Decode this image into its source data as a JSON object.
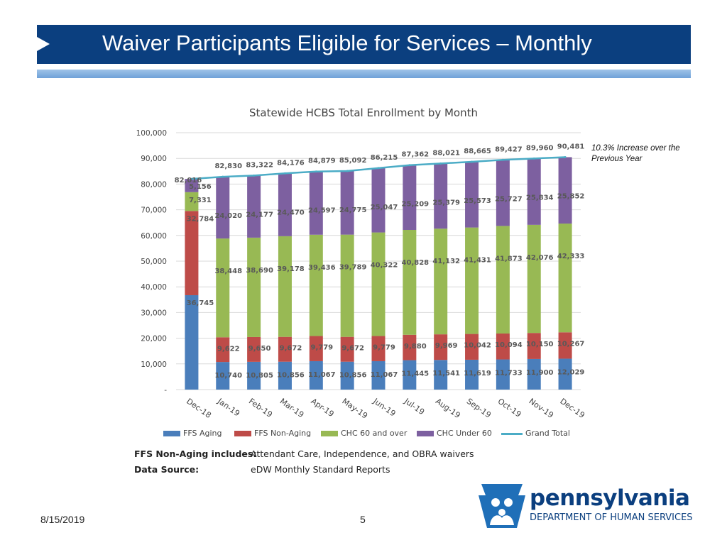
{
  "slide": {
    "title": "Waiver Participants Eligible for Services – Monthly",
    "date": "8/15/2019",
    "page_number": "5",
    "callout": "10.3% Increase over the Previous Year",
    "notes": [
      {
        "label": "FFS Non-Aging includes:",
        "text": "Attendant Care, Independence, and OBRA waivers"
      },
      {
        "label": "Data Source:",
        "text": "eDW Monthly Standard Reports"
      }
    ],
    "logo": {
      "name": "pennsylvania",
      "department": "DEPARTMENT OF HUMAN SERVICES"
    }
  },
  "chart_data": {
    "type": "bar",
    "stacked": true,
    "title": "Statewide HCBS Total Enrollment by Month",
    "xlabel": "",
    "ylabel": "",
    "ylim": [
      0,
      100000
    ],
    "y_ticks": [
      0,
      10000,
      20000,
      30000,
      40000,
      50000,
      60000,
      70000,
      80000,
      90000,
      100000
    ],
    "y_tick_labels": [
      "-",
      "10,000",
      "20,000",
      "30,000",
      "40,000",
      "50,000",
      "60,000",
      "70,000",
      "80,000",
      "90,000",
      "100,000"
    ],
    "grid": true,
    "legend_position": "bottom",
    "categories": [
      "Dec-18",
      "Jan-19",
      "Feb-19",
      "Mar-19",
      "Apr-19",
      "May-19",
      "Jun-19",
      "Jul-19",
      "Aug-19",
      "Sep-19",
      "Oct-19",
      "Nov-19",
      "Dec-19"
    ],
    "series": [
      {
        "name": "FFS Aging",
        "color": "#4a7ebb",
        "values": [
          36745,
          10740,
          10805,
          10856,
          11067,
          10856,
          11067,
          11445,
          11541,
          11619,
          11733,
          11900,
          12029
        ]
      },
      {
        "name": "FFS Non-Aging",
        "color": "#be4b48",
        "values": [
          32784,
          9622,
          9650,
          9672,
          9779,
          9672,
          9779,
          9880,
          9969,
          10042,
          10094,
          10150,
          10267
        ]
      },
      {
        "name": "CHC 60 and over",
        "color": "#98b954",
        "values": [
          7331,
          38448,
          38690,
          39178,
          39436,
          39789,
          40322,
          40828,
          41132,
          41431,
          41873,
          42076,
          42333
        ]
      },
      {
        "name": "CHC Under 60",
        "color": "#7d60a0",
        "values": [
          5156,
          24020,
          24177,
          24470,
          24597,
          24775,
          25047,
          25209,
          25379,
          25573,
          25727,
          25834,
          25852
        ]
      }
    ],
    "data_labels": {
      "FFS Aging": [
        "36,745",
        "10,740",
        "10,805",
        "10,856",
        "11,067",
        "10,856",
        "11,067",
        "11,445",
        "11,541",
        "11,619",
        "11,733",
        "11,900",
        "12,029"
      ],
      "FFS Non-Aging": [
        "32,784",
        "9,622",
        "9,650",
        "9,672",
        "9,779",
        "9,672",
        "9,779",
        "9,880",
        "9,969",
        "10,042",
        "10,094",
        "10,150",
        "10,267"
      ],
      "CHC 60 and over": [
        "7,331",
        "38,448",
        "38,690",
        "39,178",
        "39,436",
        "39,789",
        "40,322",
        "40,828",
        "41,132",
        "41,431",
        "41,873",
        "42,076",
        "42,333"
      ],
      "CHC Under 60": [
        "5,156",
        "24,020",
        "24,177",
        "24,470",
        "24,597",
        "24,775",
        "25,047",
        "25,209",
        "25,379",
        "25,573",
        "25,727",
        "25,834",
        "25,852"
      ]
    },
    "line": {
      "name": "Grand Total",
      "color": "#4bacc6",
      "values": [
        82016,
        82830,
        83322,
        84176,
        84879,
        85092,
        86215,
        87362,
        88021,
        88665,
        89427,
        89960,
        90481
      ],
      "labels": [
        "82,016",
        "82,830",
        "83,322",
        "84,176",
        "84,879",
        "85,092",
        "86,215",
        "87,362",
        "88,021",
        "88,665",
        "89,427",
        "89,960",
        "90,481"
      ]
    }
  }
}
